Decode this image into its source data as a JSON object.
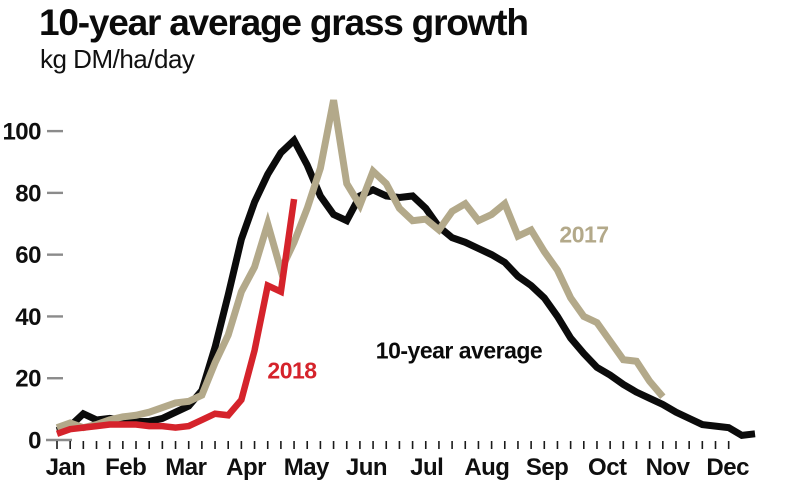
{
  "header": {
    "title": "10-year average grass growth",
    "subtitle": "kg DM/ha/day"
  },
  "chart_data": {
    "type": "line",
    "title": "10-year average grass growth",
    "unit_label": "kg DM/ha/day",
    "x_axis": {
      "months": [
        "Jan",
        "Feb",
        "Mar",
        "Apr",
        "May",
        "Jun",
        "Jul",
        "Aug",
        "Sep",
        "Oct",
        "Nov",
        "Dec"
      ],
      "minor_tick_unit": "week",
      "minor_tick_count": 52
    },
    "y_axis": {
      "ticks": [
        0,
        20,
        40,
        60,
        80,
        100
      ],
      "min": 0,
      "max": 115,
      "tick_color": "#8b8b8b"
    },
    "series": [
      {
        "name": "10-year average",
        "color": "#0b0b0b",
        "weekly_values": [
          3,
          4.5,
          8.5,
          6.5,
          7,
          6.5,
          6,
          6,
          7,
          9,
          11,
          16,
          30,
          47,
          65,
          77,
          86,
          93,
          97,
          89,
          79,
          73,
          71,
          79,
          81,
          79,
          78.5,
          79,
          75,
          69,
          65.5,
          64,
          62,
          60,
          57.5,
          53,
          50,
          46,
          40,
          33,
          28,
          23.5,
          21,
          18,
          15.5,
          13.5,
          11.5,
          9,
          7,
          5,
          4.5,
          4,
          1.5,
          2
        ]
      },
      {
        "name": "2017",
        "color": "#b3a98a",
        "weekly_values": [
          4,
          5.5,
          4,
          5,
          6.5,
          7.5,
          8,
          9,
          10.5,
          12,
          12.5,
          14.5,
          25,
          34,
          48,
          56,
          70,
          55,
          64,
          75,
          88,
          110,
          83,
          76,
          87,
          83,
          75,
          71,
          71.5,
          68,
          74,
          76.5,
          71,
          73,
          76.5,
          66,
          68,
          61,
          55,
          46,
          40,
          38,
          32,
          26,
          25.5,
          19,
          14
        ]
      },
      {
        "name": "2018",
        "color": "#d5232b",
        "weekly_values": [
          2,
          3.5,
          4,
          4.5,
          5,
          5,
          5,
          4.5,
          4.5,
          4,
          4.5,
          6.5,
          8.5,
          8,
          13,
          29,
          50,
          48,
          78
        ]
      }
    ],
    "annotations": [
      {
        "text": "10-year average",
        "color": "#0b0b0b",
        "x": 459,
        "y": 351
      },
      {
        "text": "2017",
        "color": "#b3a98a",
        "x": 584,
        "y": 235
      },
      {
        "text": "2018",
        "color": "#d5232b",
        "x": 292,
        "y": 371
      }
    ]
  }
}
